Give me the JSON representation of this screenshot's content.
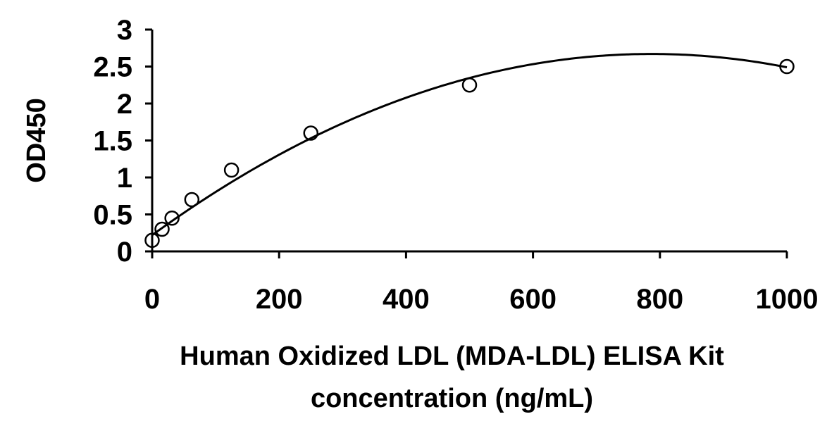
{
  "chart_data": {
    "type": "scatter",
    "title": "",
    "xlabel_lines": [
      "Human Oxidized LDL (MDA-LDL) ELISA Kit",
      "concentration (ng/mL)"
    ],
    "ylabel": "OD450",
    "xlim": [
      0,
      1000
    ],
    "ylim": [
      0,
      3
    ],
    "x_ticks": [
      0,
      200,
      400,
      600,
      800,
      1000
    ],
    "y_ticks": [
      0,
      0.5,
      1,
      1.5,
      2,
      2.5,
      3
    ],
    "x_tick_labels": [
      "0",
      "200",
      "400",
      "600",
      "800",
      "1000"
    ],
    "y_tick_labels": [
      "0",
      "0.5",
      "1",
      "1.5",
      "2",
      "2.5",
      "3"
    ],
    "grid": false,
    "legend": "none",
    "series": [
      {
        "marker": "open-circle",
        "x": [
          0,
          15.6,
          31.25,
          62.5,
          125,
          250,
          500,
          1000
        ],
        "y": [
          0.15,
          0.3,
          0.45,
          0.7,
          1.1,
          1.6,
          2.25,
          2.5
        ]
      }
    ],
    "trendline": {
      "type": "polynomial-2",
      "x_range": [
        0,
        1000
      ],
      "anchor_points": [
        {
          "x": 0,
          "y": 0.22
        },
        {
          "x": 780,
          "y": 2.67
        },
        {
          "x": 1000,
          "y": 2.49
        }
      ]
    }
  }
}
